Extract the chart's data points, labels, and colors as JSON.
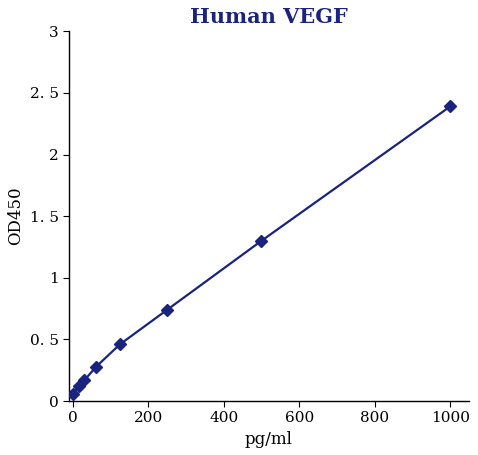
{
  "x": [
    0,
    15.6,
    31.2,
    62.5,
    125,
    250,
    500,
    1000
  ],
  "y": [
    0.055,
    0.12,
    0.17,
    0.28,
    0.46,
    0.74,
    1.3,
    2.39
  ],
  "line_color": "#1a237e",
  "marker_color": "#1a237e",
  "marker_style": "D",
  "marker_size": 6,
  "line_width": 1.6,
  "title": "Human VEGF",
  "title_color": "#1a237e",
  "title_fontsize": 15,
  "xlabel": "pg/ml",
  "ylabel": "OD450",
  "xlim": [
    -10,
    1050
  ],
  "ylim": [
    0,
    3.0
  ],
  "xticks": [
    0,
    200,
    400,
    600,
    800,
    1000
  ],
  "yticks": [
    0,
    0.5,
    1.0,
    1.5,
    2.0,
    2.5,
    3.0
  ],
  "background_color": "#ffffff",
  "axis_color": "#000000",
  "label_fontsize": 12,
  "tick_fontsize": 11
}
